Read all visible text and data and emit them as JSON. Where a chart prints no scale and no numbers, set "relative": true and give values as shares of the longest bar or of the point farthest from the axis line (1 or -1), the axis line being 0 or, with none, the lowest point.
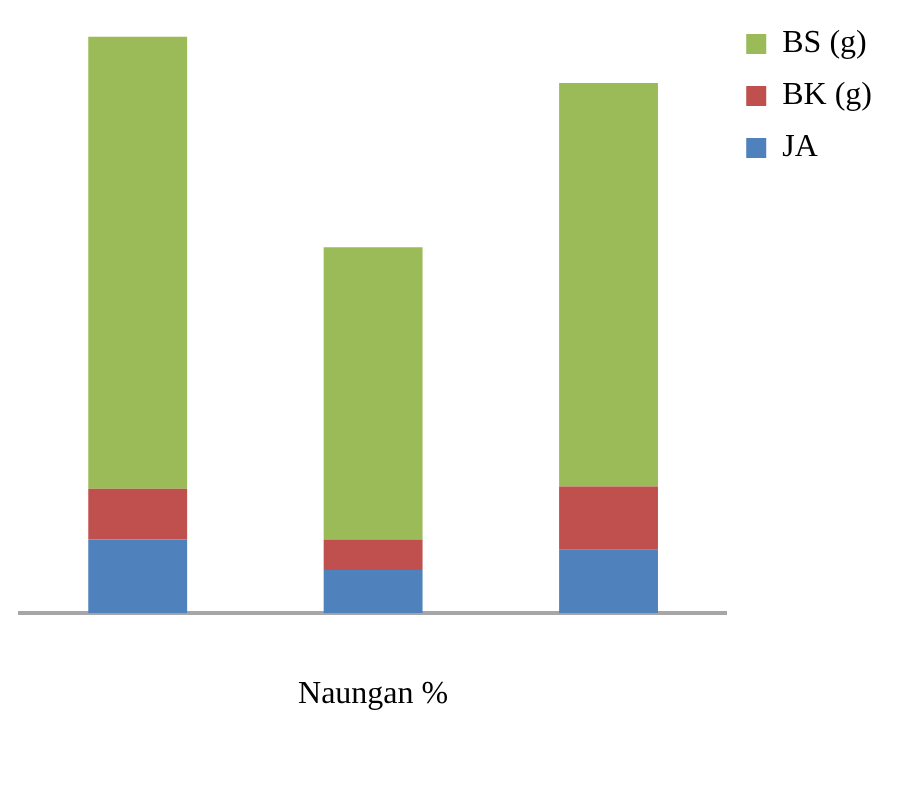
{
  "chart_data": {
    "type": "bar",
    "stacked": true,
    "relative": true,
    "xlabel": "Naungan %",
    "categories": [
      null,
      null,
      null
    ],
    "legend": "top right",
    "grid": false,
    "series": [
      {
        "name": "JA",
        "color": "#4f81bd",
        "values": [
          0.128,
          0.075,
          0.11
        ]
      },
      {
        "name": "BK (g)",
        "color": "#c0504d",
        "values": [
          0.088,
          0.053,
          0.11
        ]
      },
      {
        "name": "BS (g)",
        "color": "#9bbb59",
        "values": [
          0.784,
          0.507,
          0.7
        ]
      }
    ]
  }
}
